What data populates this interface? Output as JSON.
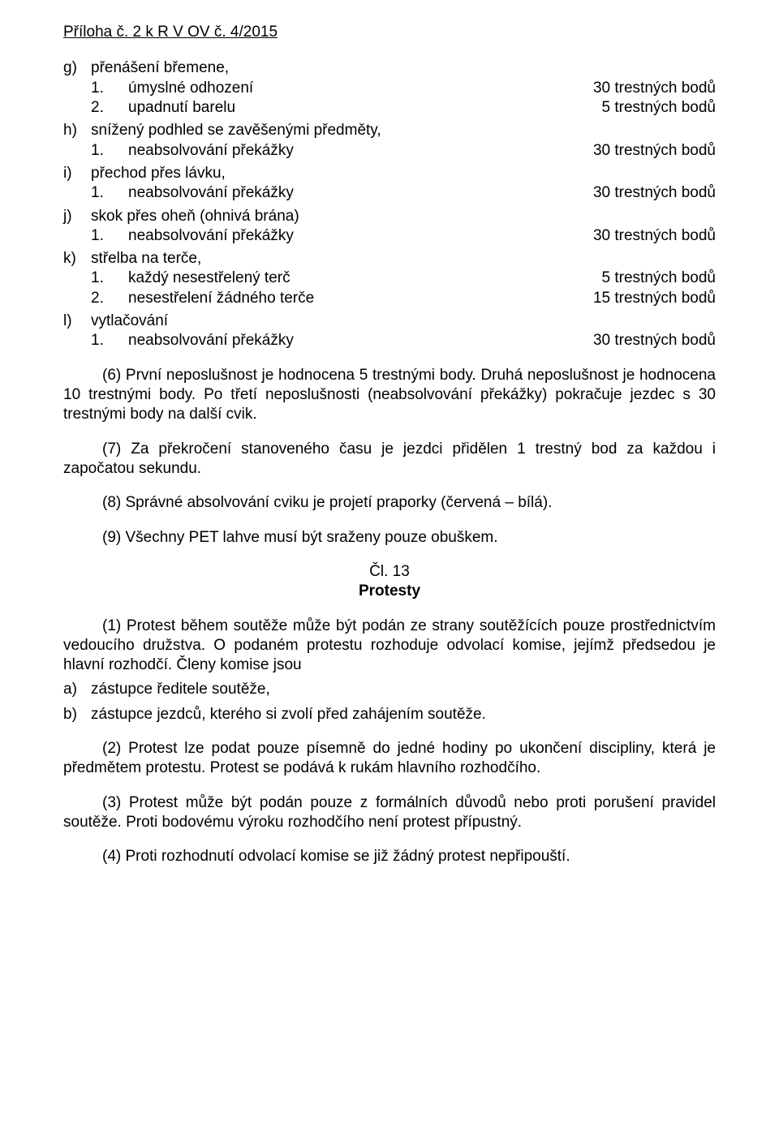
{
  "header": "Příloha č. 2 k R V OV č. 4/2015",
  "items": {
    "g": {
      "marker": "g)",
      "label": "přenášení břemene,",
      "sub": [
        {
          "marker": "1.",
          "label": "úmyslné odhození",
          "penalty": "30 trestných bodů"
        },
        {
          "marker": "2.",
          "label": "upadnutí barelu",
          "penalty": "5 trestných bodů"
        }
      ]
    },
    "h": {
      "marker": "h)",
      "label": "snížený podhled se zavěšenými předměty,",
      "sub": [
        {
          "marker": "1.",
          "label": "neabsolvování překážky",
          "penalty": "30 trestných bodů"
        }
      ]
    },
    "i": {
      "marker": "i)",
      "label": "přechod přes lávku,",
      "sub": [
        {
          "marker": "1.",
          "label": "neabsolvování překážky",
          "penalty": "30 trestných bodů"
        }
      ]
    },
    "j": {
      "marker": "j)",
      "label": "skok přes oheň (ohnivá brána)",
      "sub": [
        {
          "marker": "1.",
          "label": "neabsolvování překážky",
          "penalty": "30 trestných bodů"
        }
      ]
    },
    "k": {
      "marker": "k)",
      "label": "střelba na terče,",
      "sub": [
        {
          "marker": "1.",
          "label": "každý nesestřelený terč",
          "penalty": "5 trestných bodů"
        },
        {
          "marker": "2.",
          "label": "nesestřelení žádného terče",
          "penalty": "15 trestných bodů"
        }
      ]
    },
    "l": {
      "marker": "l)",
      "label": "vytlačování",
      "sub": [
        {
          "marker": "1.",
          "label": "neabsolvování překážky",
          "penalty": "30 trestných bodů"
        }
      ]
    }
  },
  "paras": {
    "p6": "(6) První neposlušnost je hodnocena 5 trestnými body. Druhá neposlušnost je hodnocena 10 trestnými body. Po třetí neposlušnosti (neabsolvování překážky) pokračuje jezdec s 30 trestnými body na další cvik.",
    "p7": "(7) Za překročení stanoveného času je jezdci přidělen 1 trestný bod za každou i započatou sekundu.",
    "p8": "(8) Správné absolvování cviku je projetí praporky (červená – bílá).",
    "p9": "(9) Všechny PET lahve musí být sraženy pouze obuškem."
  },
  "article": {
    "num": "Čl. 13",
    "title": "Protesty"
  },
  "protest": {
    "p1": "(1) Protest během soutěže může být podán ze strany soutěžících pouze prostřednictvím vedoucího družstva. O podaném protestu rozhoduje odvolací komise, jejímž předsedou je hlavní rozhodčí. Členy komise jsou",
    "a": {
      "marker": "a)",
      "text": "zástupce ředitele soutěže,"
    },
    "b": {
      "marker": "b)",
      "text": "zástupce jezdců, kterého si zvolí před zahájením soutěže."
    },
    "p2": "(2) Protest lze podat pouze písemně do jedné hodiny po ukončení discipliny, která je předmětem protestu. Protest se podává k rukám hlavního rozhodčího.",
    "p3": "(3) Protest může být podán pouze z formálních důvodů nebo proti porušení pravidel soutěže. Proti bodovému výroku rozhodčího není protest přípustný.",
    "p4": "(4) Proti rozhodnutí odvolací komise se již žádný protest nepřipouští."
  }
}
